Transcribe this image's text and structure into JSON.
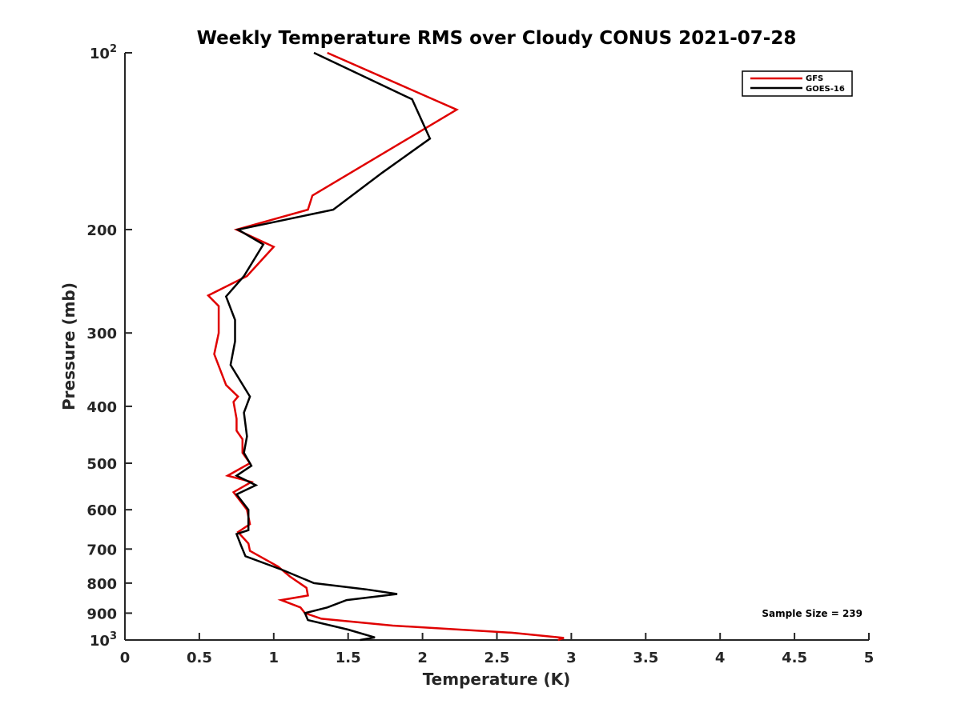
{
  "chart_data": {
    "type": "line",
    "title": "Weekly Temperature RMS over Cloudy CONUS 2021-07-28",
    "xlabel": "Temperature (K)",
    "ylabel": "Pressure (mb)",
    "xlim": [
      0,
      5
    ],
    "ylim": [
      100,
      1000
    ],
    "y_scale": "log",
    "y_reversed": true,
    "grid": false,
    "x_ticks": [
      {
        "value": 0,
        "label": "0"
      },
      {
        "value": 0.5,
        "label": "0.5"
      },
      {
        "value": 1,
        "label": "1"
      },
      {
        "value": 1.5,
        "label": "1.5"
      },
      {
        "value": 2,
        "label": "2"
      },
      {
        "value": 2.5,
        "label": "2.5"
      },
      {
        "value": 3,
        "label": "3"
      },
      {
        "value": 3.5,
        "label": "3.5"
      },
      {
        "value": 4,
        "label": "4"
      },
      {
        "value": 4.5,
        "label": "4.5"
      },
      {
        "value": 5,
        "label": "5"
      }
    ],
    "y_ticks": [
      {
        "value": 100,
        "base": "10",
        "exp": "2"
      },
      {
        "value": 200,
        "label": "200"
      },
      {
        "value": 300,
        "label": "300"
      },
      {
        "value": 400,
        "label": "400"
      },
      {
        "value": 500,
        "label": "500"
      },
      {
        "value": 600,
        "label": "600"
      },
      {
        "value": 700,
        "label": "700"
      },
      {
        "value": 800,
        "label": "800"
      },
      {
        "value": 900,
        "label": "900"
      },
      {
        "value": 1000,
        "base": "10",
        "exp": "3"
      }
    ],
    "legend_position": "top-right",
    "series": [
      {
        "name": "GFS",
        "color": "#e00000",
        "points": [
          [
            1.36,
            100
          ],
          [
            2.23,
            125
          ],
          [
            1.26,
            175
          ],
          [
            1.23,
            185
          ],
          [
            0.75,
            200
          ],
          [
            1.0,
            214
          ],
          [
            0.82,
            240
          ],
          [
            0.56,
            259
          ],
          [
            0.63,
            270
          ],
          [
            0.63,
            300
          ],
          [
            0.6,
            326
          ],
          [
            0.68,
            368
          ],
          [
            0.76,
            385
          ],
          [
            0.73,
            393
          ],
          [
            0.75,
            420
          ],
          [
            0.75,
            440
          ],
          [
            0.79,
            455
          ],
          [
            0.79,
            480
          ],
          [
            0.84,
            500
          ],
          [
            0.69,
            525
          ],
          [
            0.85,
            538
          ],
          [
            0.73,
            560
          ],
          [
            0.82,
            600
          ],
          [
            0.84,
            635
          ],
          [
            0.76,
            655
          ],
          [
            0.83,
            685
          ],
          [
            0.84,
            705
          ],
          [
            1.03,
            750
          ],
          [
            1.11,
            780
          ],
          [
            1.22,
            815
          ],
          [
            1.23,
            840
          ],
          [
            1.05,
            855
          ],
          [
            1.18,
            880
          ],
          [
            1.21,
            900
          ],
          [
            1.32,
            920
          ],
          [
            1.8,
            945
          ],
          [
            2.6,
            972
          ],
          [
            2.95,
            992
          ],
          [
            2.91,
            1000
          ]
        ]
      },
      {
        "name": "GOES-16",
        "color": "#000000",
        "points": [
          [
            1.27,
            100
          ],
          [
            1.93,
            120
          ],
          [
            2.05,
            140
          ],
          [
            1.73,
            160
          ],
          [
            1.4,
            185
          ],
          [
            0.76,
            200
          ],
          [
            0.93,
            212
          ],
          [
            0.8,
            240
          ],
          [
            0.68,
            260
          ],
          [
            0.74,
            285
          ],
          [
            0.74,
            310
          ],
          [
            0.71,
            340
          ],
          [
            0.84,
            385
          ],
          [
            0.8,
            410
          ],
          [
            0.82,
            450
          ],
          [
            0.8,
            480
          ],
          [
            0.85,
            505
          ],
          [
            0.75,
            525
          ],
          [
            0.88,
            545
          ],
          [
            0.75,
            565
          ],
          [
            0.83,
            600
          ],
          [
            0.83,
            650
          ],
          [
            0.75,
            660
          ],
          [
            0.78,
            690
          ],
          [
            0.81,
            720
          ],
          [
            1.06,
            760
          ],
          [
            1.27,
            800
          ],
          [
            1.62,
            820
          ],
          [
            1.83,
            835
          ],
          [
            1.49,
            855
          ],
          [
            1.36,
            880
          ],
          [
            1.21,
            900
          ],
          [
            1.23,
            925
          ],
          [
            1.5,
            960
          ],
          [
            1.68,
            990
          ],
          [
            1.58,
            1000
          ]
        ]
      }
    ],
    "annotations": [
      {
        "text": "Sample Size = 239"
      }
    ]
  }
}
